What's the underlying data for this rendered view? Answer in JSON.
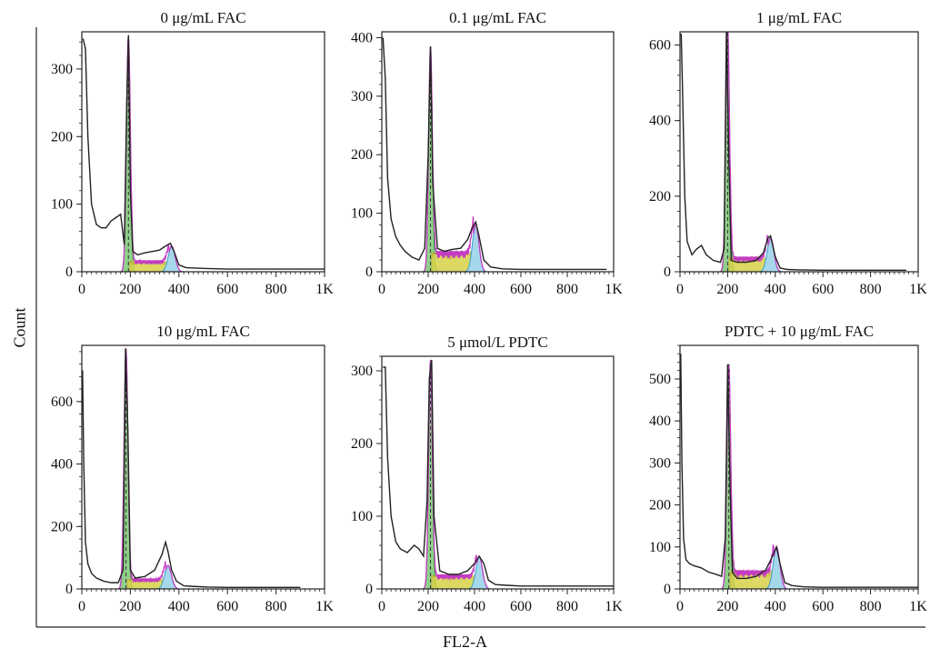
{
  "figure": {
    "shared_ylabel": "Count",
    "shared_xlabel": "FL2-A"
  },
  "colors": {
    "curve": "#222222",
    "g1_fill": "#8fd08a",
    "g1_line": "#2c9a2c",
    "s_fill": "#d8d24a",
    "g2_fill": "#a6d8ec",
    "g2_line": "#3a9ec8",
    "envelope": "#c33cc3"
  },
  "chart_data": [
    {
      "type": "area",
      "title": "0 μg/mL FAC",
      "xticks": [
        "0",
        "200",
        "400",
        "600",
        "800",
        "1K"
      ],
      "yticks": [
        "0",
        "100",
        "200",
        "300"
      ],
      "xlim": [
        0,
        1000
      ],
      "ylim": [
        0,
        355
      ],
      "series": [
        {
          "x": [
            5,
            15,
            25,
            40,
            60,
            80,
            100,
            120,
            140,
            160,
            175,
            185,
            192,
            200,
            210,
            230,
            260,
            290,
            320,
            345,
            365,
            380,
            400,
            430,
            500,
            600,
            700,
            800,
            900,
            1000
          ],
          "values": [
            345,
            330,
            200,
            100,
            70,
            65,
            65,
            75,
            80,
            85,
            40,
            250,
            350,
            120,
            30,
            25,
            28,
            30,
            32,
            38,
            42,
            30,
            10,
            6,
            5,
            4,
            4,
            4,
            4,
            4
          ]
        }
      ],
      "peaks": {
        "g1": 192,
        "g1_height": 350,
        "g2": 370,
        "g2_height": 38
      }
    },
    {
      "type": "area",
      "title": "0.1 μg/mL FAC",
      "xticks": [
        "0",
        "200",
        "400",
        "600",
        "800",
        "1K"
      ],
      "yticks": [
        "0",
        "100",
        "200",
        "300",
        "400"
      ],
      "xlim": [
        0,
        1000
      ],
      "ylim": [
        0,
        410
      ],
      "series": [
        {
          "x": [
            5,
            15,
            25,
            40,
            60,
            80,
            100,
            130,
            160,
            185,
            200,
            210,
            220,
            240,
            270,
            300,
            340,
            370,
            390,
            405,
            420,
            440,
            470,
            520,
            600,
            700,
            800,
            900,
            970
          ],
          "values": [
            400,
            330,
            160,
            90,
            60,
            45,
            35,
            25,
            20,
            40,
            200,
            385,
            150,
            40,
            35,
            38,
            40,
            55,
            75,
            85,
            60,
            20,
            8,
            5,
            4,
            4,
            4,
            4,
            4
          ]
        }
      ],
      "peaks": {
        "g1": 210,
        "g1_height": 385,
        "g2": 405,
        "g2_height": 80
      }
    },
    {
      "type": "area",
      "title": "1 μg/mL FAC",
      "xticks": [
        "0",
        "200",
        "400",
        "600",
        "800",
        "1K"
      ],
      "yticks": [
        "0",
        "200",
        "400",
        "600"
      ],
      "xlim": [
        0,
        1000
      ],
      "ylim": [
        0,
        635
      ],
      "series": [
        {
          "x": [
            5,
            10,
            20,
            30,
            50,
            70,
            90,
            110,
            140,
            170,
            185,
            195,
            205,
            215,
            240,
            280,
            320,
            350,
            370,
            380,
            400,
            420,
            450,
            500,
            600,
            700,
            800,
            900,
            950
          ],
          "values": [
            630,
            500,
            200,
            80,
            45,
            60,
            70,
            45,
            30,
            25,
            60,
            650,
            300,
            30,
            25,
            25,
            30,
            50,
            90,
            95,
            40,
            10,
            6,
            5,
            4,
            4,
            4,
            4,
            4
          ]
        }
      ],
      "peaks": {
        "g1": 200,
        "g1_height": 650,
        "g2": 380,
        "g2_height": 90
      }
    },
    {
      "type": "area",
      "title": "10 μg/mL FAC",
      "xticks": [
        "0",
        "200",
        "400",
        "600",
        "800",
        "1K"
      ],
      "yticks": [
        "0",
        "200",
        "400",
        "600"
      ],
      "xlim": [
        0,
        1000
      ],
      "ylim": [
        0,
        780
      ],
      "series": [
        {
          "x": [
            3,
            8,
            15,
            25,
            40,
            60,
            90,
            120,
            150,
            170,
            180,
            190,
            200,
            220,
            260,
            300,
            330,
            345,
            355,
            370,
            390,
            420,
            460,
            520,
            600,
            700,
            800,
            900
          ],
          "values": [
            700,
            400,
            150,
            80,
            50,
            35,
            25,
            20,
            20,
            60,
            770,
            500,
            60,
            35,
            40,
            60,
            110,
            150,
            120,
            60,
            25,
            10,
            8,
            6,
            5,
            5,
            5,
            5
          ]
        }
      ],
      "peaks": {
        "g1": 182,
        "g1_height": 770,
        "g2": 355,
        "g2_height": 75
      }
    },
    {
      "type": "area",
      "title": "5 μmol/L PDTC",
      "xticks": [
        "0",
        "200",
        "400",
        "600",
        "800",
        "1K"
      ],
      "yticks": [
        "0",
        "100",
        "200",
        "300"
      ],
      "xlim": [
        0,
        1000
      ],
      "ylim": [
        0,
        320
      ],
      "series": [
        {
          "x": [
            5,
            15,
            25,
            40,
            60,
            80,
            110,
            140,
            160,
            180,
            195,
            205,
            215,
            225,
            250,
            290,
            330,
            370,
            400,
            420,
            440,
            460,
            490,
            540,
            600,
            700,
            800,
            900,
            1000
          ],
          "values": [
            305,
            305,
            180,
            100,
            65,
            55,
            50,
            60,
            55,
            45,
            120,
            290,
            315,
            100,
            25,
            20,
            20,
            25,
            35,
            45,
            35,
            12,
            6,
            5,
            4,
            4,
            4,
            4,
            4
          ]
        }
      ],
      "peaks": {
        "g1": 210,
        "g1_height": 315,
        "g2": 420,
        "g2_height": 45
      }
    },
    {
      "type": "area",
      "title": "PDTC + 10 μg/mL FAC",
      "xticks": [
        "0",
        "200",
        "400",
        "600",
        "800",
        "1K"
      ],
      "yticks": [
        "0",
        "100",
        "200",
        "300",
        "400",
        "500"
      ],
      "xlim": [
        0,
        1000
      ],
      "ylim": [
        0,
        580
      ],
      "series": [
        {
          "x": [
            3,
            8,
            15,
            25,
            40,
            60,
            90,
            120,
            150,
            175,
            190,
            200,
            210,
            220,
            240,
            280,
            320,
            360,
            390,
            405,
            420,
            440,
            470,
            520,
            600,
            700,
            800,
            900,
            1000
          ],
          "values": [
            560,
            300,
            120,
            70,
            60,
            55,
            50,
            40,
            35,
            30,
            120,
            535,
            250,
            40,
            25,
            25,
            30,
            45,
            80,
            100,
            60,
            15,
            8,
            5,
            4,
            4,
            4,
            4,
            4
          ]
        }
      ],
      "peaks": {
        "g1": 205,
        "g1_height": 535,
        "g2": 405,
        "g2_height": 100
      }
    }
  ]
}
